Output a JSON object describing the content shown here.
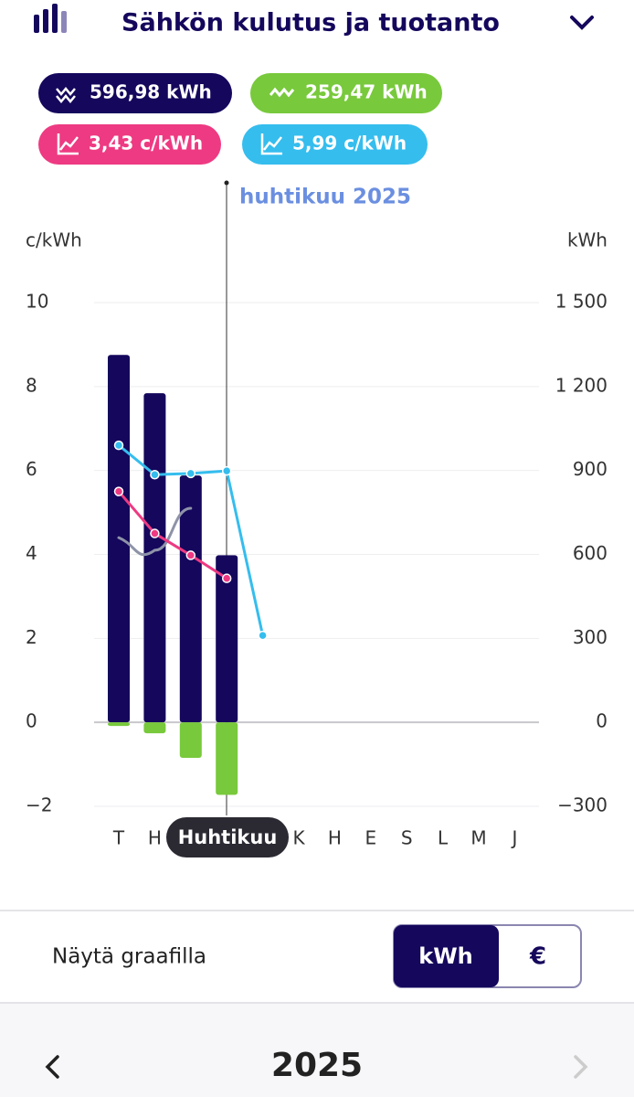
{
  "header": {
    "title": "Sähkön kulutus ja tuotanto"
  },
  "summary": [
    "596,98 kWh",
    "259,47 kWh",
    "3,43 c/kWh",
    "5,99 c/kWh"
  ],
  "chart_data": {
    "type": "bar",
    "selected_label": "huhtikuu 2025",
    "tooltip": "Huhtikuu",
    "y_label": "c/kWh",
    "y2_label": "kWh",
    "categories": [
      "T",
      "H",
      null,
      null,
      null,
      "K",
      "H",
      "E",
      "S",
      "L",
      "M",
      "J"
    ],
    "ylim": [
      -2,
      10
    ],
    "yticks": [
      {
        "value": -2,
        "label": "−2"
      },
      0,
      2,
      4,
      6,
      8,
      10
    ],
    "y2lim": [
      -300,
      1500
    ],
    "y2ticks": [
      {
        "value": -300,
        "label": "−300"
      },
      0,
      300,
      600,
      900,
      {
        "value": 1200,
        "label": "1 200"
      },
      {
        "value": 1500,
        "label": "1 500"
      }
    ],
    "grid": true,
    "series": [
      {
        "type": "bar",
        "axis": "y2",
        "color": "#14075c",
        "values": [
          1313,
          1176,
          882,
          597,
          null,
          null,
          null,
          null,
          null,
          null,
          null,
          null
        ]
      },
      {
        "type": "bar",
        "axis": "y2",
        "color": "#78c93c",
        "values": [
          -13,
          -39,
          -127,
          -259,
          null,
          null,
          null,
          null,
          null,
          null,
          null,
          null
        ]
      },
      {
        "type": "line",
        "axis": "y",
        "color": "#8e93a8",
        "smooth": true,
        "markers": false,
        "values": [
          4.4,
          4.1,
          5.1,
          null,
          null,
          null,
          null,
          null,
          null,
          null,
          null,
          null
        ]
      },
      {
        "type": "line",
        "axis": "y",
        "color": "#ee3a82",
        "smooth": false,
        "markers": true,
        "values": [
          5.5,
          4.5,
          3.98,
          3.43,
          null,
          null,
          null,
          null,
          null,
          null,
          null,
          null
        ]
      },
      {
        "type": "line",
        "axis": "y",
        "color": "#35bdee",
        "smooth": false,
        "markers": true,
        "values": [
          6.6,
          5.9,
          5.93,
          5.99,
          2.07,
          null,
          null,
          null,
          null,
          null,
          null,
          null
        ]
      }
    ]
  },
  "controls": {
    "label": "Näytä graafilla",
    "options": [
      "kWh",
      "€"
    ]
  },
  "footer": {
    "year": "2025"
  }
}
